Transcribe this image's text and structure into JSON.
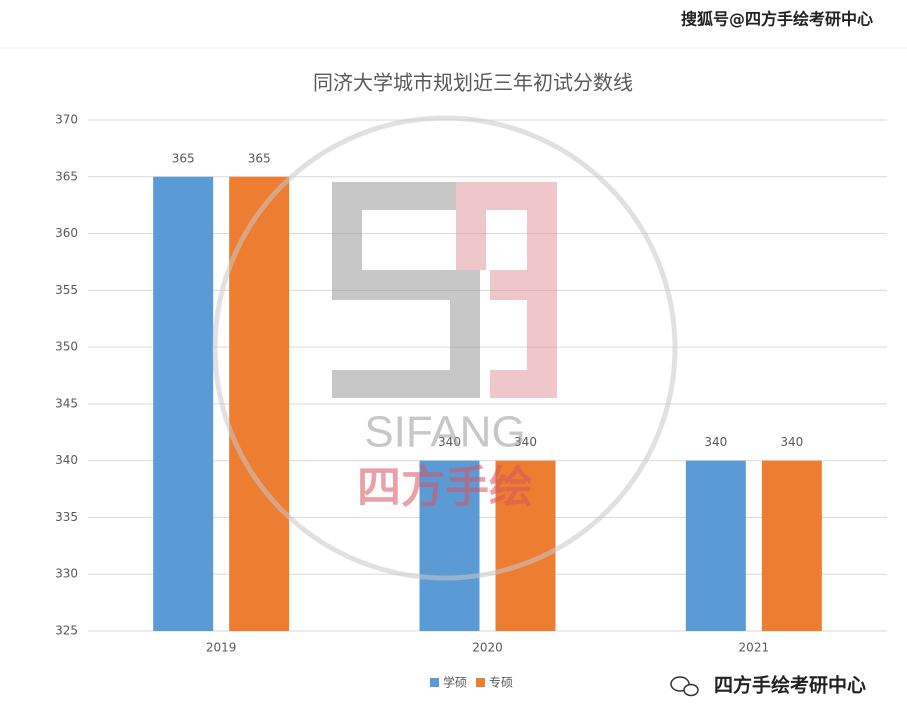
{
  "chart_data": {
    "type": "bar",
    "title": "同济大学城市规划近三年初试分数线",
    "categories": [
      "2019",
      "2020",
      "2021"
    ],
    "series": [
      {
        "name": "学硕",
        "color": "#5b9bd5",
        "values": [
          365,
          340,
          340
        ]
      },
      {
        "name": "专硕",
        "color": "#ed7d31",
        "values": [
          365,
          340,
          340
        ]
      }
    ],
    "ylim": [
      325,
      370
    ],
    "yticks": [
      325,
      330,
      335,
      340,
      345,
      350,
      355,
      360,
      365,
      370
    ],
    "grid": true,
    "legend": "bottom",
    "annotations": [
      "搜狐号@四方手绘考研中心",
      "SIFANG",
      "四方手绘",
      "四方手绘考研中心"
    ]
  }
}
